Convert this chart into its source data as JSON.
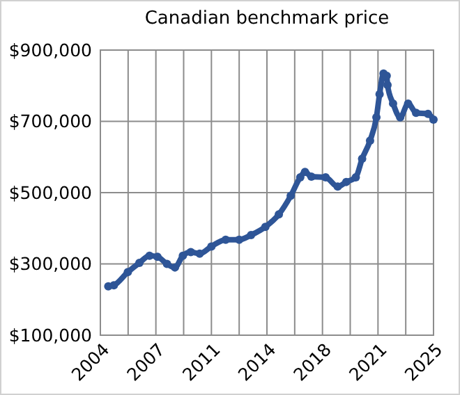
{
  "chart_data": {
    "type": "line",
    "title": "Canadian benchmark price",
    "marker": "circle",
    "grid": true,
    "color": "#2e5597",
    "x": [
      2004.5,
      2004.85,
      2005.73,
      2006.46,
      2007.1,
      2007.6,
      2008.2,
      2008.7,
      2009.2,
      2009.7,
      2010.26,
      2011.0,
      2011.9,
      2012.75,
      2013.5,
      2014.4,
      2015.25,
      2016.0,
      2016.6,
      2016.9,
      2017.3,
      2018.2,
      2018.96,
      2019.5,
      2020.1,
      2020.5,
      2021.0,
      2021.4,
      2021.6,
      2021.85,
      2022.05,
      2022.1,
      2022.45,
      2022.9,
      2023.4,
      2023.9,
      2024.65,
      2025.0
    ],
    "values": [
      237000,
      240000,
      277000,
      303000,
      323000,
      320000,
      300000,
      290000,
      323000,
      333000,
      329000,
      349000,
      368000,
      368000,
      381000,
      404000,
      439000,
      491000,
      543000,
      558000,
      545000,
      543000,
      517000,
      530000,
      543000,
      595000,
      646000,
      711000,
      776000,
      834000,
      828000,
      802000,
      750000,
      711000,
      750000,
      724000,
      721000,
      705000
    ],
    "xlim": [
      2004,
      2025
    ],
    "xticks": [
      {
        "value": 2004,
        "label": "2004"
      },
      {
        "value": 2005.75,
        "label": null
      },
      {
        "value": 2007.5,
        "label": "2007"
      },
      {
        "value": 2009.25,
        "label": null
      },
      {
        "value": 2011,
        "label": "2011"
      },
      {
        "value": 2012.75,
        "label": null
      },
      {
        "value": 2014.5,
        "label": "2014"
      },
      {
        "value": 2016.25,
        "label": null
      },
      {
        "value": 2018,
        "label": "2018"
      },
      {
        "value": 2019.75,
        "label": null
      },
      {
        "value": 2021.5,
        "label": "2021"
      },
      {
        "value": 2023.25,
        "label": null
      },
      {
        "value": 2025,
        "label": "2025"
      }
    ],
    "ylim": [
      100000,
      900000
    ],
    "yticks": [
      {
        "value": 100000,
        "label": "$100,000"
      },
      {
        "value": 300000,
        "label": "$300,000"
      },
      {
        "value": 500000,
        "label": "$500,000"
      },
      {
        "value": 700000,
        "label": "$700,000"
      },
      {
        "value": 900000,
        "label": "$900,000"
      }
    ]
  }
}
